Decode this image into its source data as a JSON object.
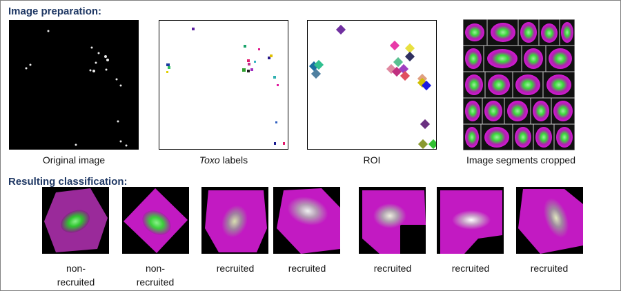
{
  "sections": {
    "prep_title": "Image preparation:",
    "result_title": "Resulting classification:"
  },
  "panels": {
    "original": "Original image",
    "labels_italic": "Toxo",
    "labels_rest": " labels",
    "roi": "ROI",
    "segments": "Image segments cropped"
  },
  "results": [
    {
      "line1": "non-",
      "line2": "recruited"
    },
    {
      "line1": "non-",
      "line2": "recruited"
    },
    {
      "line1": "recruited",
      "line2": ""
    },
    {
      "line1": "recruited",
      "line2": ""
    },
    {
      "line1": "recruited",
      "line2": ""
    },
    {
      "line1": "recruited",
      "line2": ""
    },
    {
      "line1": "recruited",
      "line2": ""
    }
  ],
  "colors": {
    "title": "#1f3864",
    "magenta": "#d41ad4",
    "green": "#3be63b"
  }
}
